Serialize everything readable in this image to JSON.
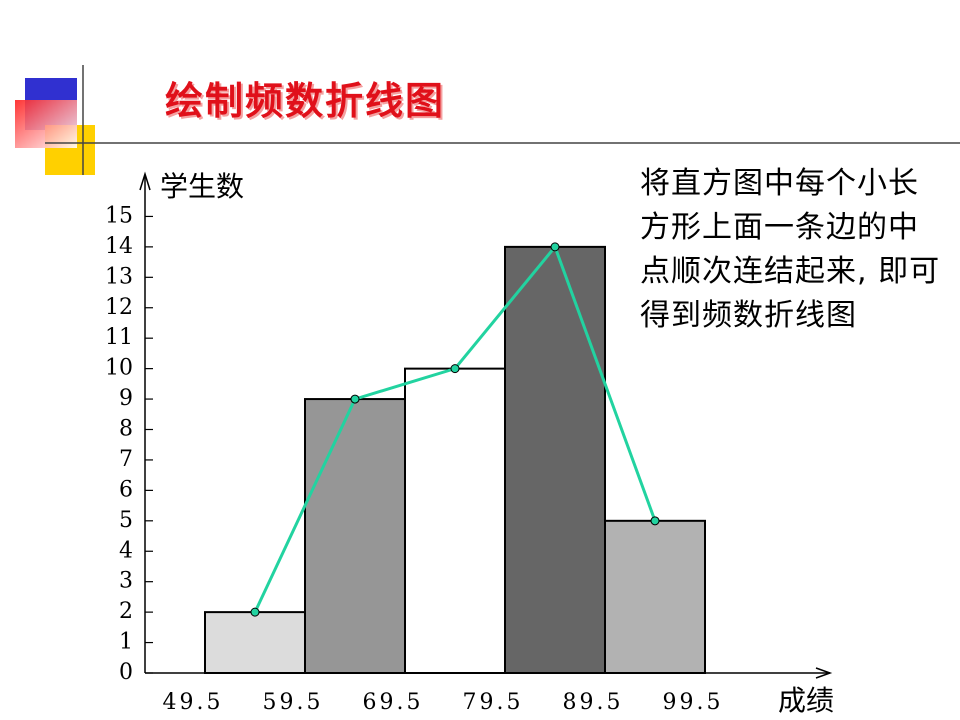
{
  "chart_data": {
    "type": "histogram",
    "title": "绘制频数折线图",
    "annotation": "将直方图中每个小长方形上面一条边的中点顺次连结起来, 即可得到频数折线图",
    "y_label": "学生数",
    "x_label": "成绩",
    "bins": [
      49.5,
      59.5,
      69.5,
      79.5,
      89.5,
      99.5
    ],
    "counts": [
      2,
      9,
      10,
      14,
      5
    ],
    "bar_colors": [
      "#dcdcdc",
      "#969696",
      "#ffffff",
      "#666666",
      "#b2b2b2"
    ],
    "line_color": "#22d3a0",
    "xlim": [
      43.5,
      112
    ],
    "ylim": [
      0,
      16
    ],
    "yticks": [
      0,
      1,
      2,
      3,
      4,
      5,
      6,
      7,
      8,
      9,
      10,
      11,
      12,
      13,
      14,
      15
    ]
  }
}
